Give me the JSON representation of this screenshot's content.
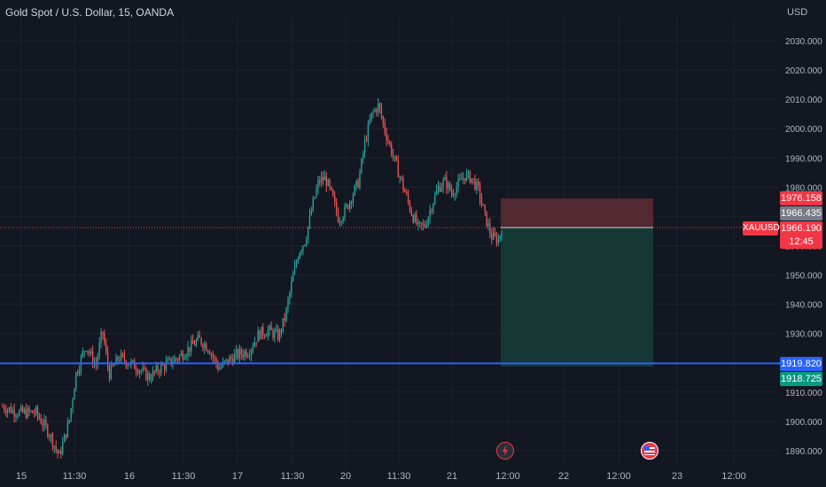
{
  "header": {
    "title": "Gold Spot / U.S. Dollar, 15, OANDA",
    "currency": "USD"
  },
  "symbol_tag": "XAUUSD",
  "price_labels": {
    "target": "1976.158",
    "mid": "1966.435",
    "last": "1966.190",
    "countdown": "12:45",
    "line": "1919.820",
    "stop": "1918.725"
  },
  "colors": {
    "background": "#131722",
    "up": "#26a69a",
    "down": "#ef5350",
    "hline": "#2962ff",
    "risk_zone": "#5a2a33",
    "reward_zone": "#163a36"
  },
  "icons": [
    "lightning-event-icon",
    "us-flag-event-icon"
  ],
  "chart_data": {
    "type": "candlestick",
    "title": "Gold Spot / U.S. Dollar, 15, OANDA",
    "ylim": [
      1887,
      2043
    ],
    "y_ticks": [
      1890,
      1900,
      1910,
      1920,
      1930,
      1940,
      1950,
      1960,
      1970,
      1980,
      1990,
      2000,
      2010,
      2020,
      2030
    ],
    "y_tick_labels": [
      "1890.000",
      "1900.000",
      "1910.000",
      "1920.000",
      "1930.000",
      "1940.000",
      "1950.000",
      "1960.000",
      "1970.000",
      "1980.000",
      "1990.000",
      "2000.000",
      "2010.000",
      "2020.000",
      "2030.000"
    ],
    "x_tick_labels": [
      "15",
      "11:30",
      "16",
      "11:30",
      "17",
      "11:30",
      "20",
      "11:30",
      "21",
      "12:00",
      "22",
      "12:00",
      "23",
      "12:00"
    ],
    "close_path": [
      [
        0,
        1905
      ],
      [
        5,
        1903
      ],
      [
        10,
        1903
      ],
      [
        14,
        1896
      ],
      [
        17,
        1888
      ],
      [
        20,
        1900
      ],
      [
        22,
        1916
      ],
      [
        25,
        1926
      ],
      [
        28,
        1919
      ],
      [
        30,
        1931
      ],
      [
        32,
        1916
      ],
      [
        35,
        1922
      ],
      [
        38,
        1920
      ],
      [
        41,
        1918
      ],
      [
        44,
        1915
      ],
      [
        47,
        1918
      ],
      [
        50,
        1920
      ],
      [
        53,
        1922
      ],
      [
        56,
        1925
      ],
      [
        59,
        1928
      ],
      [
        62,
        1925
      ],
      [
        65,
        1918
      ],
      [
        68,
        1921
      ],
      [
        71,
        1923
      ],
      [
        74,
        1924
      ],
      [
        77,
        1930
      ],
      [
        80,
        1931
      ],
      [
        83,
        1929
      ],
      [
        85,
        1936
      ],
      [
        87,
        1948
      ],
      [
        89,
        1958
      ],
      [
        91,
        1962
      ],
      [
        93,
        1973
      ],
      [
        95,
        1982
      ],
      [
        97,
        1983
      ],
      [
        99,
        1977
      ],
      [
        101,
        1969
      ],
      [
        103,
        1972
      ],
      [
        105,
        1977
      ],
      [
        107,
        1982
      ],
      [
        109,
        1996
      ],
      [
        111,
        2005
      ],
      [
        113,
        2008
      ],
      [
        115,
        1999
      ],
      [
        117,
        1992
      ],
      [
        119,
        1985
      ],
      [
        121,
        1978
      ],
      [
        123,
        1971
      ],
      [
        125,
        1966
      ],
      [
        127,
        1967
      ],
      [
        129,
        1974
      ],
      [
        131,
        1980
      ],
      [
        133,
        1982
      ],
      [
        135,
        1978
      ],
      [
        137,
        1981
      ],
      [
        139,
        1984
      ],
      [
        141,
        1983
      ],
      [
        143,
        1979
      ],
      [
        145,
        1970
      ],
      [
        147,
        1963
      ],
      [
        149,
        1962
      ],
      [
        150,
        1966
      ]
    ],
    "last_price": 1966.19,
    "horizontal_line": 1919.82,
    "position_tool": {
      "entry": 1966.19,
      "target": 1976.158,
      "stop": 1918.725
    }
  }
}
